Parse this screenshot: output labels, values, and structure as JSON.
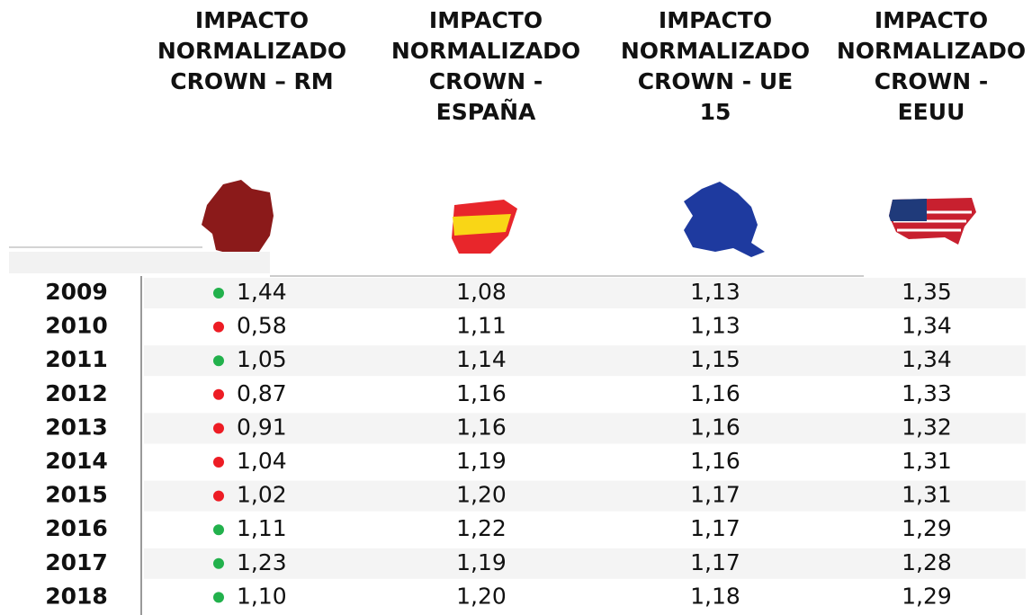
{
  "headers": [
    [
      "IMPACTO",
      "NORMALIZADO",
      "CROWN – RM"
    ],
    [
      "IMPACTO",
      "NORMALIZADO",
      "CROWN -",
      "ESPAÑA"
    ],
    [
      "IMPACTO",
      "NORMALIZADO",
      "CROWN - UE",
      "15"
    ],
    [
      "IMPACTO",
      "NORMALIZADO",
      "CROWN -",
      "EEUU"
    ]
  ],
  "rows": [
    {
      "year": "2009",
      "values": [
        "1,44",
        "1,08",
        "1,13",
        "1,35"
      ],
      "dot_color": "#22b14c"
    },
    {
      "year": "2010",
      "values": [
        "0,58",
        "1,11",
        "1,13",
        "1,34"
      ],
      "dot_color": "#ed1c24"
    },
    {
      "year": "2011",
      "values": [
        "1,05",
        "1,14",
        "1,15",
        "1,34"
      ],
      "dot_color": "#22b14c"
    },
    {
      "year": "2012",
      "values": [
        "0,87",
        "1,16",
        "1,16",
        "1,33"
      ],
      "dot_color": "#ed1c24"
    },
    {
      "year": "2013",
      "values": [
        "0,91",
        "1,16",
        "1,16",
        "1,32"
      ],
      "dot_color": "#ed1c24"
    },
    {
      "year": "2014",
      "values": [
        "1,04",
        "1,19",
        "1,16",
        "1,31"
      ],
      "dot_color": "#ed1c24"
    },
    {
      "year": "2015",
      "values": [
        "1,02",
        "1,20",
        "1,17",
        "1,31"
      ],
      "dot_color": "#ed1c24"
    },
    {
      "year": "2016",
      "values": [
        "1,11",
        "1,22",
        "1,17",
        "1,29"
      ],
      "dot_color": "#22b14c"
    },
    {
      "year": "2017",
      "values": [
        "1,23",
        "1,19",
        "1,17",
        "1,28"
      ],
      "dot_color": "#22b14c"
    },
    {
      "year": "2018",
      "values": [
        "1,10",
        "1,20",
        "1,18",
        "1,29"
      ],
      "dot_color": "#22b14c"
    }
  ]
}
